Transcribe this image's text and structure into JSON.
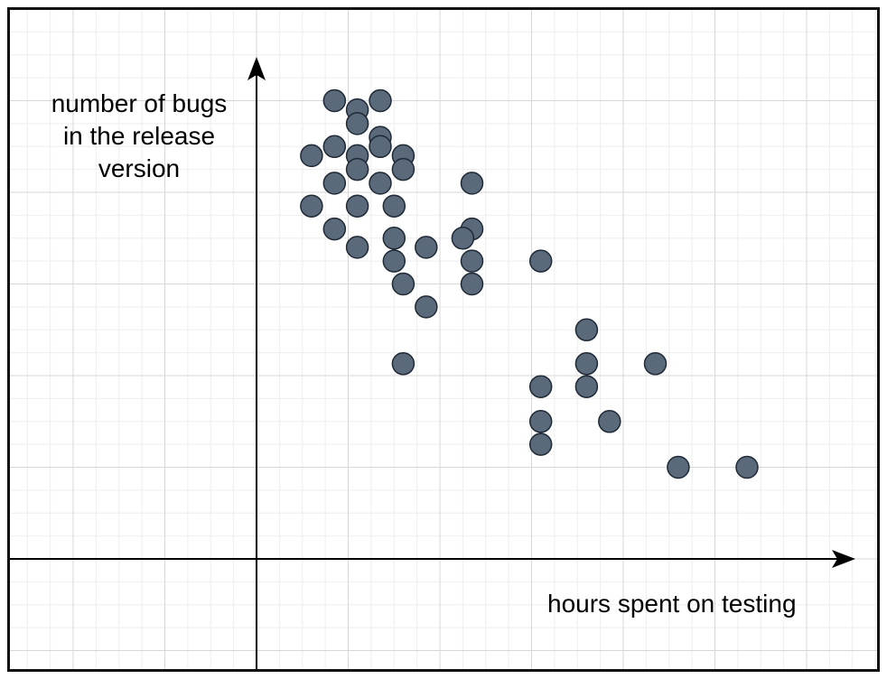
{
  "colors": {
    "point_fill": "#5b6a7b",
    "point_stroke": "#1f2a36",
    "grid_minor": "#eeeeee",
    "grid_major": "#d7d7d7",
    "axis": "#000000"
  },
  "chart_data": {
    "type": "scatter",
    "title": "",
    "xlabel": "hours spent on testing",
    "ylabel_lines": [
      "number of bugs",
      "in the release",
      "version"
    ],
    "xlim": [
      -2.7,
      6.7
    ],
    "ylim": [
      -1.2,
      5.9
    ],
    "grid": true,
    "legend": "none",
    "ticks_shown": false,
    "series": [
      {
        "points": [
          [
            0.85,
            5.0
          ],
          [
            1.1,
            4.9
          ],
          [
            1.35,
            5.0
          ],
          [
            1.1,
            4.75
          ],
          [
            1.35,
            4.6
          ],
          [
            0.85,
            4.5
          ],
          [
            1.35,
            4.5
          ],
          [
            0.6,
            4.4
          ],
          [
            1.1,
            4.4
          ],
          [
            1.6,
            4.4
          ],
          [
            1.1,
            4.25
          ],
          [
            1.6,
            4.25
          ],
          [
            0.85,
            4.1
          ],
          [
            1.35,
            4.1
          ],
          [
            2.35,
            4.1
          ],
          [
            0.6,
            3.85
          ],
          [
            1.1,
            3.85
          ],
          [
            1.5,
            3.85
          ],
          [
            0.85,
            3.6
          ],
          [
            2.35,
            3.6
          ],
          [
            1.5,
            3.5
          ],
          [
            2.25,
            3.5
          ],
          [
            1.1,
            3.4
          ],
          [
            1.85,
            3.4
          ],
          [
            1.5,
            3.25
          ],
          [
            2.35,
            3.25
          ],
          [
            3.1,
            3.25
          ],
          [
            1.6,
            3.0
          ],
          [
            2.35,
            3.0
          ],
          [
            1.85,
            2.75
          ],
          [
            3.6,
            2.5
          ],
          [
            1.6,
            2.13
          ],
          [
            3.6,
            2.13
          ],
          [
            4.35,
            2.13
          ],
          [
            3.1,
            1.88
          ],
          [
            3.6,
            1.88
          ],
          [
            3.1,
            1.5
          ],
          [
            3.85,
            1.5
          ],
          [
            3.1,
            1.25
          ],
          [
            4.6,
            1.0
          ],
          [
            5.35,
            1.0
          ]
        ]
      }
    ]
  }
}
